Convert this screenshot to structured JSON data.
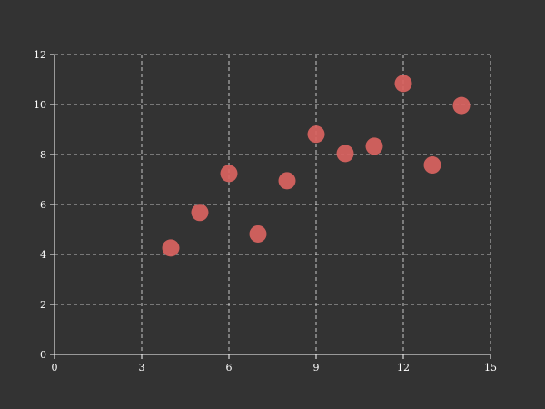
{
  "chart_data": {
    "type": "scatter",
    "title": "",
    "xlabel": "",
    "ylabel": "",
    "xlim": [
      0,
      15
    ],
    "ylim": [
      0,
      12
    ],
    "xticks": [
      0,
      3,
      6,
      9,
      12,
      15
    ],
    "yticks": [
      0,
      2,
      4,
      6,
      8,
      10,
      12
    ],
    "grid": true,
    "colors": {
      "background": "#333333",
      "point": "#d9635f",
      "axis": "#ffffff",
      "grid": "#ffffff"
    },
    "series": [
      {
        "x": [
          4,
          5,
          6,
          7,
          8,
          9,
          10,
          11,
          12,
          13,
          14
        ],
        "y": [
          4.26,
          5.68,
          7.24,
          4.82,
          6.95,
          8.81,
          8.04,
          8.33,
          10.84,
          7.58,
          9.96
        ]
      }
    ]
  }
}
